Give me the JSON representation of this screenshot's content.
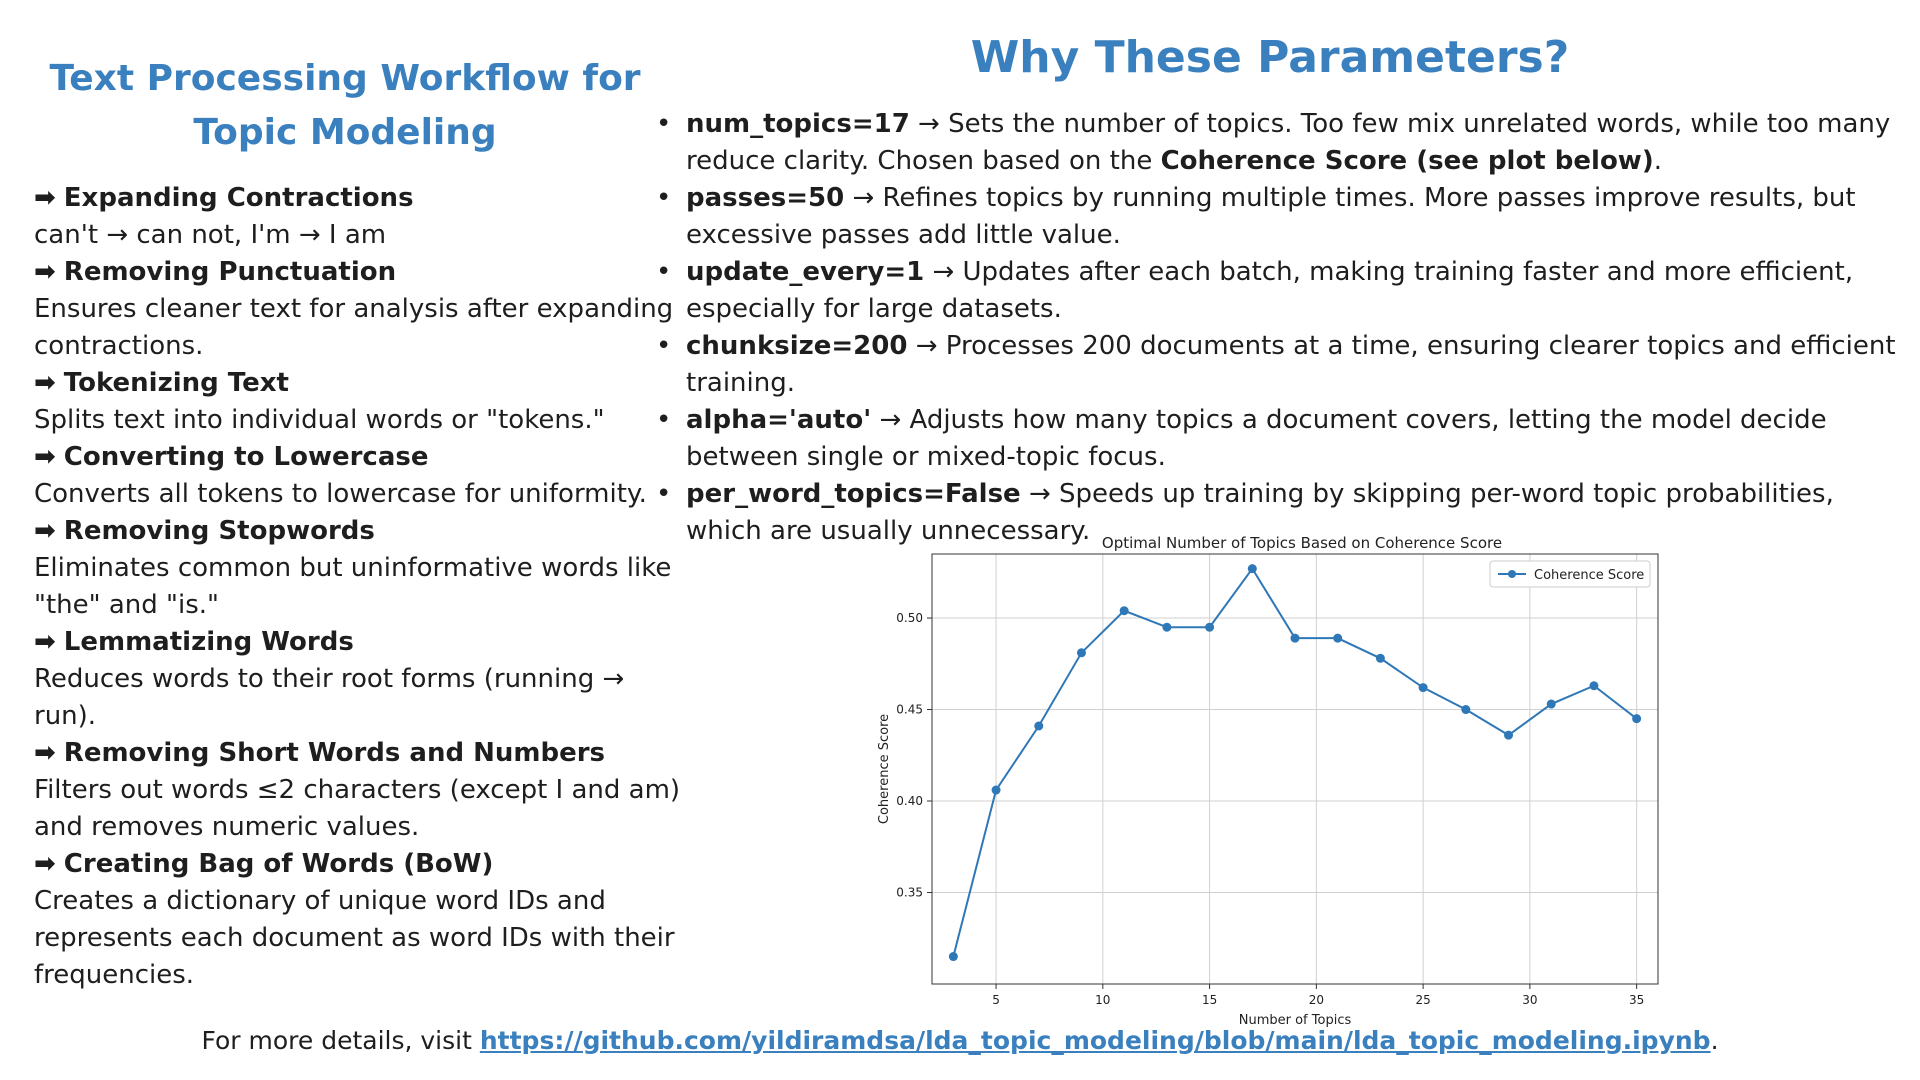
{
  "left": {
    "title_line1": "Text Processing Workflow for",
    "title_line2": "Topic Modeling",
    "arrow": "➡",
    "steps": [
      {
        "heading": "Expanding Contractions",
        "desc": "can't → can not, I'm → I am"
      },
      {
        "heading": "Removing Punctuation",
        "desc": "Ensures cleaner text for analysis after expanding contractions."
      },
      {
        "heading": "Tokenizing Text",
        "desc": "Splits text into individual words or \"tokens.\""
      },
      {
        "heading": "Converting to Lowercase",
        "desc": "Converts all tokens to lowercase for uniformity."
      },
      {
        "heading": "Removing Stopwords",
        "desc": "Eliminates common but uninformative words like \"the\" and \"is.\""
      },
      {
        "heading": "Lemmatizing Words",
        "desc": "Reduces words to their root forms (running → run)."
      },
      {
        "heading": "Removing Short Words and Numbers",
        "desc": "Filters out words ≤2 characters (except I and am) and removes numeric values."
      },
      {
        "heading": "Creating Bag of Words (BoW)",
        "desc": "Creates a dictionary of unique word IDs and represents each document as word IDs with their frequencies."
      }
    ]
  },
  "right": {
    "title": "Why These Parameters?",
    "bullet": "•",
    "params": [
      {
        "name": "num_topics=17",
        "text_before": " → Sets the number of topics. Too few mix unrelated words, while too many reduce clarity. Chosen based on the ",
        "emph": "Coherence Score (see plot below)",
        "text_after": "."
      },
      {
        "name": "passes=50",
        "text_before": " → Refines topics by running multiple times. More passes improve results, but excessive passes add little value.",
        "emph": "",
        "text_after": ""
      },
      {
        "name": "update_every=1",
        "text_before": " → Updates after each batch, making training faster and more efficient, especially for large datasets.",
        "emph": "",
        "text_after": ""
      },
      {
        "name": "chunksize=200",
        "text_before": " → Processes 200 documents at a time, ensuring clearer topics and efficient training.",
        "emph": "",
        "text_after": ""
      },
      {
        "name": "alpha='auto'",
        "text_before": " → Adjusts how many topics a document covers, letting the model decide between single or mixed-topic focus.",
        "emph": "",
        "text_after": ""
      },
      {
        "name": "per_word_topics=False",
        "text_before": " → Speeds up training by skipping per-word topic probabilities, which are usually unnecessary.",
        "emph": "",
        "text_after": ""
      }
    ]
  },
  "chart_data": {
    "type": "line",
    "title": "Optimal Number of Topics Based on Coherence Score",
    "xlabel": "Number of Topics",
    "ylabel": "Coherence Score",
    "xlim": [
      2,
      36
    ],
    "ylim": [
      0.3,
      0.535
    ],
    "xticks": [
      5,
      10,
      15,
      20,
      25,
      30,
      35
    ],
    "yticks": [
      0.35,
      0.4,
      0.45,
      0.5
    ],
    "ytick_labels": [
      "0.35",
      "0.40",
      "0.45",
      "0.50"
    ],
    "grid": true,
    "legend_position": "top-right",
    "color": "#2f78b7",
    "series": [
      {
        "name": "Coherence Score",
        "x": [
          3,
          5,
          7,
          9,
          11,
          13,
          15,
          17,
          19,
          21,
          23,
          25,
          27,
          29,
          31,
          33,
          35
        ],
        "values": [
          0.315,
          0.406,
          0.441,
          0.481,
          0.504,
          0.495,
          0.495,
          0.527,
          0.489,
          0.489,
          0.478,
          0.462,
          0.45,
          0.436,
          0.453,
          0.463,
          0.445
        ]
      }
    ]
  },
  "footer": {
    "prefix": "For more details, visit ",
    "link": "https://github.com/yildiramdsa/lda_topic_modeling/blob/main/lda_topic_modeling.ipynb",
    "suffix": "."
  }
}
